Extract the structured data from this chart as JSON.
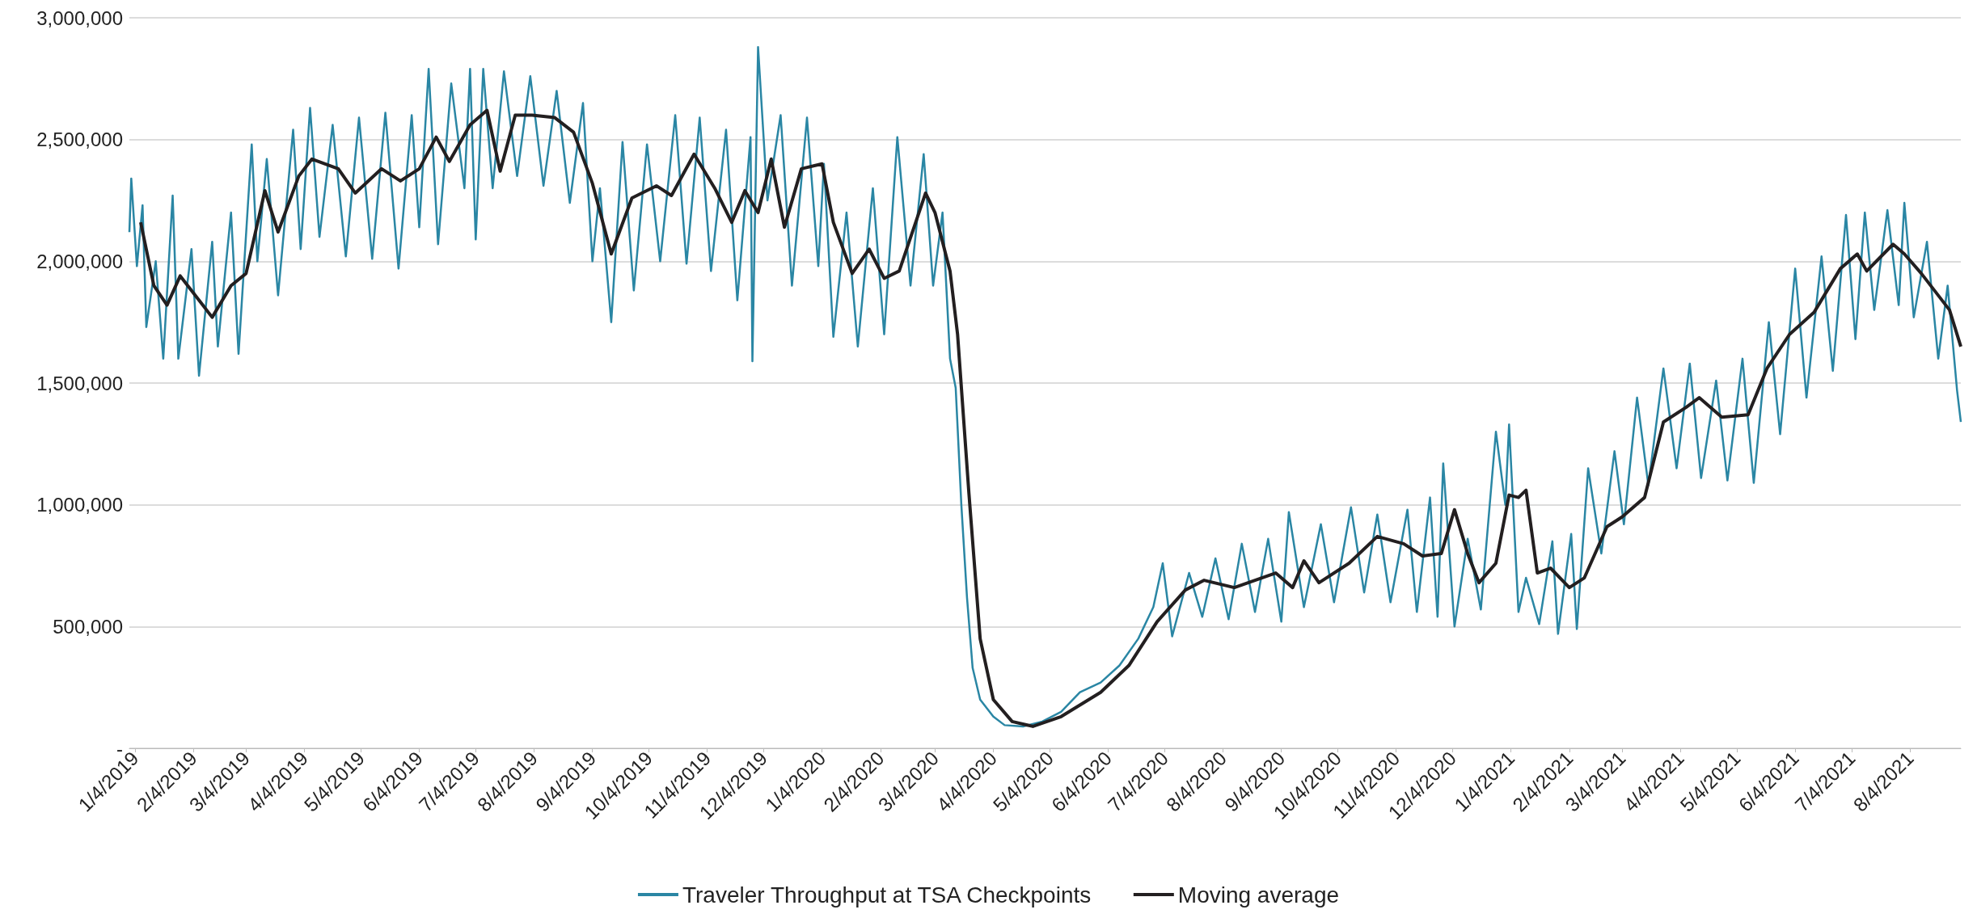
{
  "chart_data": {
    "type": "line",
    "xlim": [
      "2019-01-01",
      "2021-08-31"
    ],
    "ylim": [
      0,
      3000000
    ],
    "yticks": [
      {
        "value": 0,
        "label": "-"
      },
      {
        "value": 500000,
        "label": "500,000"
      },
      {
        "value": 1000000,
        "label": "1,000,000"
      },
      {
        "value": 1500000,
        "label": "1,500,000"
      },
      {
        "value": 2000000,
        "label": "2,000,000"
      },
      {
        "value": 2500000,
        "label": "2,500,000"
      },
      {
        "value": 3000000,
        "label": "3,000,000"
      }
    ],
    "xticks": [
      {
        "value": "2019-01-04",
        "label": "1/4/2019"
      },
      {
        "value": "2019-02-04",
        "label": "2/4/2019"
      },
      {
        "value": "2019-03-04",
        "label": "3/4/2019"
      },
      {
        "value": "2019-04-04",
        "label": "4/4/2019"
      },
      {
        "value": "2019-05-04",
        "label": "5/4/2019"
      },
      {
        "value": "2019-06-04",
        "label": "6/4/2019"
      },
      {
        "value": "2019-07-04",
        "label": "7/4/2019"
      },
      {
        "value": "2019-08-04",
        "label": "8/4/2019"
      },
      {
        "value": "2019-09-04",
        "label": "9/4/2019"
      },
      {
        "value": "2019-10-04",
        "label": "10/4/2019"
      },
      {
        "value": "2019-11-04",
        "label": "11/4/2019"
      },
      {
        "value": "2019-12-04",
        "label": "12/4/2019"
      },
      {
        "value": "2020-01-04",
        "label": "1/4/2020"
      },
      {
        "value": "2020-02-04",
        "label": "2/4/2020"
      },
      {
        "value": "2020-03-04",
        "label": "3/4/2020"
      },
      {
        "value": "2020-04-04",
        "label": "4/4/2020"
      },
      {
        "value": "2020-05-04",
        "label": "5/4/2020"
      },
      {
        "value": "2020-06-04",
        "label": "6/4/2020"
      },
      {
        "value": "2020-07-04",
        "label": "7/4/2020"
      },
      {
        "value": "2020-08-04",
        "label": "8/4/2020"
      },
      {
        "value": "2020-09-04",
        "label": "9/4/2020"
      },
      {
        "value": "2020-10-04",
        "label": "10/4/2020"
      },
      {
        "value": "2020-11-04",
        "label": "11/4/2020"
      },
      {
        "value": "2020-12-04",
        "label": "12/4/2020"
      },
      {
        "value": "2021-01-04",
        "label": "1/4/2021"
      },
      {
        "value": "2021-02-04",
        "label": "2/4/2021"
      },
      {
        "value": "2021-03-04",
        "label": "3/4/2021"
      },
      {
        "value": "2021-04-04",
        "label": "4/4/2021"
      },
      {
        "value": "2021-05-04",
        "label": "5/4/2021"
      },
      {
        "value": "2021-06-04",
        "label": "6/4/2021"
      },
      {
        "value": "2021-07-04",
        "label": "7/4/2021"
      },
      {
        "value": "2021-08-04",
        "label": "8/4/2021"
      }
    ],
    "grid": "y",
    "legend": "bottom",
    "marker": "none",
    "line_style": "solid",
    "series": [
      {
        "name": "Traveler Throughput at TSA Checkpoints",
        "color": "#2a86a4",
        "x": [
          "2019-01-01",
          "2019-01-02",
          "2019-01-05",
          "2019-01-08",
          "2019-01-10",
          "2019-01-15",
          "2019-01-19",
          "2019-01-24",
          "2019-01-27",
          "2019-02-03",
          "2019-02-07",
          "2019-02-14",
          "2019-02-17",
          "2019-02-24",
          "2019-02-28",
          "2019-03-07",
          "2019-03-10",
          "2019-03-15",
          "2019-03-21",
          "2019-03-29",
          "2019-04-02",
          "2019-04-07",
          "2019-04-12",
          "2019-04-19",
          "2019-04-26",
          "2019-05-03",
          "2019-05-10",
          "2019-05-17",
          "2019-05-24",
          "2019-05-31",
          "2019-06-04",
          "2019-06-09",
          "2019-06-14",
          "2019-06-21",
          "2019-06-28",
          "2019-07-01",
          "2019-07-04",
          "2019-07-08",
          "2019-07-13",
          "2019-07-19",
          "2019-07-26",
          "2019-08-02",
          "2019-08-09",
          "2019-08-16",
          "2019-08-23",
          "2019-08-30",
          "2019-09-04",
          "2019-09-08",
          "2019-09-14",
          "2019-09-20",
          "2019-09-26",
          "2019-10-03",
          "2019-10-10",
          "2019-10-18",
          "2019-10-24",
          "2019-10-31",
          "2019-11-06",
          "2019-11-14",
          "2019-11-20",
          "2019-11-27",
          "2019-11-28",
          "2019-12-01",
          "2019-12-06",
          "2019-12-13",
          "2019-12-19",
          "2019-12-27",
          "2020-01-02",
          "2020-01-05",
          "2020-01-10",
          "2020-01-17",
          "2020-01-23",
          "2020-01-31",
          "2020-02-06",
          "2020-02-13",
          "2020-02-20",
          "2020-02-27",
          "2020-03-03",
          "2020-03-08",
          "2020-03-12",
          "2020-03-15",
          "2020-03-18",
          "2020-03-21",
          "2020-03-24",
          "2020-03-28",
          "2020-04-04",
          "2020-04-10",
          "2020-04-20",
          "2020-04-30",
          "2020-05-10",
          "2020-05-20",
          "2020-05-31",
          "2020-06-10",
          "2020-06-20",
          "2020-06-28",
          "2020-07-03",
          "2020-07-08",
          "2020-07-17",
          "2020-07-24",
          "2020-07-31",
          "2020-08-07",
          "2020-08-14",
          "2020-08-21",
          "2020-08-28",
          "2020-09-04",
          "2020-09-08",
          "2020-09-16",
          "2020-09-25",
          "2020-10-02",
          "2020-10-11",
          "2020-10-18",
          "2020-10-25",
          "2020-11-01",
          "2020-11-10",
          "2020-11-15",
          "2020-11-22",
          "2020-11-26",
          "2020-11-29",
          "2020-12-05",
          "2020-12-12",
          "2020-12-19",
          "2020-12-27",
          "2021-01-01",
          "2021-01-03",
          "2021-01-08",
          "2021-01-12",
          "2021-01-19",
          "2021-01-26",
          "2021-01-29",
          "2021-02-05",
          "2021-02-08",
          "2021-02-14",
          "2021-02-21",
          "2021-02-28",
          "2021-03-05",
          "2021-03-12",
          "2021-03-18",
          "2021-03-26",
          "2021-04-02",
          "2021-04-09",
          "2021-04-15",
          "2021-04-23",
          "2021-04-29",
          "2021-05-07",
          "2021-05-13",
          "2021-05-21",
          "2021-05-27",
          "2021-06-04",
          "2021-06-10",
          "2021-06-18",
          "2021-06-24",
          "2021-07-01",
          "2021-07-06",
          "2021-07-11",
          "2021-07-16",
          "2021-07-23",
          "2021-07-29",
          "2021-08-01",
          "2021-08-06",
          "2021-08-13",
          "2021-08-19",
          "2021-08-24",
          "2021-08-29",
          "2021-08-31"
        ],
        "values": [
          2120000,
          2340000,
          1980000,
          2230000,
          1730000,
          2000000,
          1600000,
          2270000,
          1600000,
          2050000,
          1530000,
          2080000,
          1650000,
          2200000,
          1620000,
          2480000,
          2000000,
          2420000,
          1860000,
          2540000,
          2050000,
          2630000,
          2100000,
          2560000,
          2020000,
          2590000,
          2010000,
          2610000,
          1970000,
          2600000,
          2140000,
          2790000,
          2070000,
          2730000,
          2300000,
          2790000,
          2090000,
          2790000,
          2300000,
          2780000,
          2350000,
          2760000,
          2310000,
          2700000,
          2240000,
          2650000,
          2000000,
          2300000,
          1750000,
          2490000,
          1880000,
          2480000,
          2000000,
          2600000,
          1990000,
          2590000,
          1960000,
          2540000,
          1840000,
          2510000,
          1590000,
          2880000,
          2250000,
          2600000,
          1900000,
          2590000,
          1980000,
          2400000,
          1690000,
          2200000,
          1650000,
          2300000,
          1700000,
          2510000,
          1900000,
          2440000,
          1900000,
          2200000,
          1600000,
          1480000,
          1000000,
          620000,
          330000,
          200000,
          130000,
          95000,
          90000,
          110000,
          150000,
          230000,
          270000,
          340000,
          450000,
          580000,
          760000,
          460000,
          720000,
          540000,
          780000,
          530000,
          840000,
          560000,
          860000,
          520000,
          970000,
          580000,
          920000,
          600000,
          990000,
          640000,
          960000,
          600000,
          980000,
          560000,
          1030000,
          540000,
          1170000,
          500000,
          860000,
          570000,
          1300000,
          1000000,
          1330000,
          560000,
          700000,
          510000,
          850000,
          470000,
          880000,
          490000,
          1150000,
          800000,
          1220000,
          920000,
          1440000,
          1080000,
          1560000,
          1150000,
          1580000,
          1110000,
          1510000,
          1100000,
          1600000,
          1090000,
          1750000,
          1290000,
          1970000,
          1440000,
          2020000,
          1550000,
          2190000,
          1680000,
          2200000,
          1800000,
          2210000,
          1820000,
          2240000,
          1770000,
          2080000,
          1600000,
          1900000,
          1470000,
          1340000
        ]
      },
      {
        "name": "Moving average",
        "color": "#231f20",
        "x": [
          "2019-01-07",
          "2019-01-14",
          "2019-01-21",
          "2019-01-28",
          "2019-02-07",
          "2019-02-14",
          "2019-02-24",
          "2019-03-04",
          "2019-03-14",
          "2019-03-21",
          "2019-04-01",
          "2019-04-08",
          "2019-04-22",
          "2019-05-01",
          "2019-05-15",
          "2019-05-25",
          "2019-06-04",
          "2019-06-13",
          "2019-06-20",
          "2019-07-01",
          "2019-07-10",
          "2019-07-17",
          "2019-07-25",
          "2019-08-03",
          "2019-08-15",
          "2019-08-25",
          "2019-09-04",
          "2019-09-14",
          "2019-09-25",
          "2019-10-08",
          "2019-10-16",
          "2019-10-28",
          "2019-11-08",
          "2019-11-17",
          "2019-11-24",
          "2019-12-01",
          "2019-12-08",
          "2019-12-15",
          "2019-12-24",
          "2020-01-04",
          "2020-01-10",
          "2020-01-20",
          "2020-01-29",
          "2020-02-06",
          "2020-02-14",
          "2020-02-28",
          "2020-03-04",
          "2020-03-12",
          "2020-03-16",
          "2020-03-22",
          "2020-03-28",
          "2020-04-04",
          "2020-04-14",
          "2020-04-25",
          "2020-05-10",
          "2020-05-31",
          "2020-06-15",
          "2020-06-30",
          "2020-07-15",
          "2020-07-25",
          "2020-08-10",
          "2020-09-01",
          "2020-09-10",
          "2020-09-16",
          "2020-09-24",
          "2020-10-10",
          "2020-10-25",
          "2020-11-08",
          "2020-11-18",
          "2020-11-28",
          "2020-12-05",
          "2020-12-12",
          "2020-12-18",
          "2020-12-27",
          "2021-01-03",
          "2021-01-08",
          "2021-01-12",
          "2021-01-18",
          "2021-01-25",
          "2021-02-04",
          "2021-02-12",
          "2021-02-24",
          "2021-03-04",
          "2021-03-16",
          "2021-03-26",
          "2021-04-07",
          "2021-04-14",
          "2021-04-26",
          "2021-05-10",
          "2021-05-20",
          "2021-06-01",
          "2021-06-14",
          "2021-06-28",
          "2021-07-07",
          "2021-07-12",
          "2021-07-26",
          "2021-08-01",
          "2021-08-10",
          "2021-08-25",
          "2021-08-31"
        ],
        "values": [
          2160000,
          1900000,
          1820000,
          1940000,
          1840000,
          1770000,
          1900000,
          1950000,
          2290000,
          2120000,
          2350000,
          2420000,
          2380000,
          2280000,
          2380000,
          2330000,
          2380000,
          2510000,
          2410000,
          2560000,
          2620000,
          2370000,
          2600000,
          2600000,
          2590000,
          2530000,
          2320000,
          2030000,
          2260000,
          2310000,
          2270000,
          2440000,
          2300000,
          2160000,
          2290000,
          2200000,
          2420000,
          2140000,
          2380000,
          2400000,
          2160000,
          1950000,
          2050000,
          1930000,
          1960000,
          2280000,
          2200000,
          1960000,
          1700000,
          1050000,
          450000,
          200000,
          110000,
          90000,
          130000,
          230000,
          340000,
          520000,
          650000,
          690000,
          660000,
          720000,
          660000,
          770000,
          680000,
          760000,
          870000,
          840000,
          790000,
          800000,
          980000,
          800000,
          680000,
          760000,
          1040000,
          1030000,
          1060000,
          720000,
          740000,
          660000,
          700000,
          910000,
          950000,
          1030000,
          1340000,
          1400000,
          1440000,
          1360000,
          1370000,
          1560000,
          1700000,
          1790000,
          1970000,
          2030000,
          1960000,
          2070000,
          2030000,
          1950000,
          1800000,
          1650000
        ]
      }
    ]
  }
}
